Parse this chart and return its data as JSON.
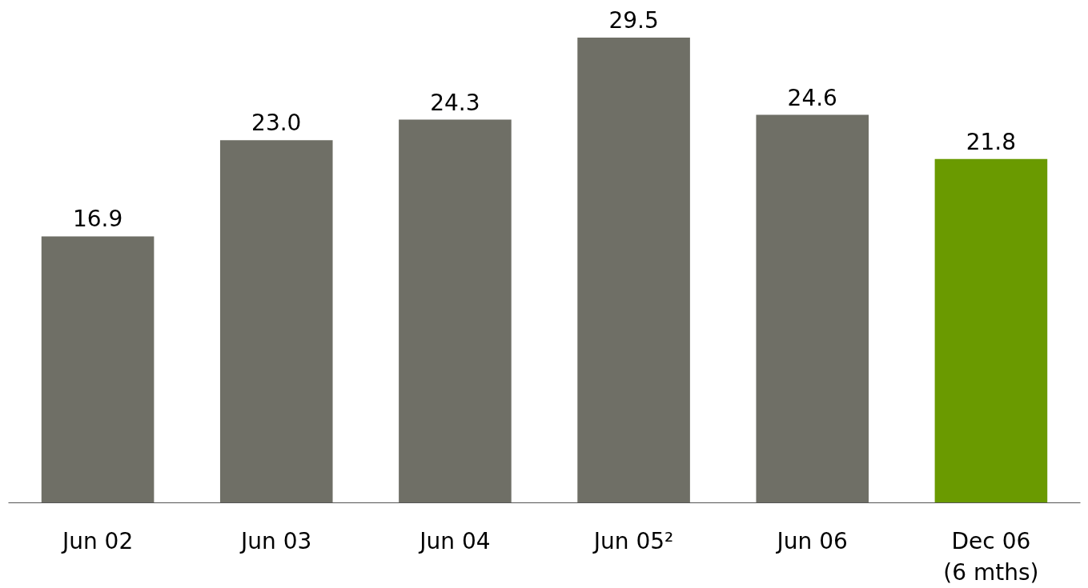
{
  "chart_data": {
    "type": "bar",
    "categories": [
      "Jun 02",
      "Jun 03",
      "Jun 04",
      "Jun 05²",
      "Jun 06",
      "Dec 06\n(6 mths)"
    ],
    "values": [
      16.9,
      23.0,
      24.3,
      29.5,
      24.6,
      21.8
    ],
    "colors": [
      "#6f6f66",
      "#6f6f66",
      "#6f6f66",
      "#6f6f66",
      "#6f6f66",
      "#6a9a00"
    ],
    "value_labels": [
      "16.9",
      "23.0",
      "24.3",
      "29.5",
      "24.6",
      "21.8"
    ]
  }
}
